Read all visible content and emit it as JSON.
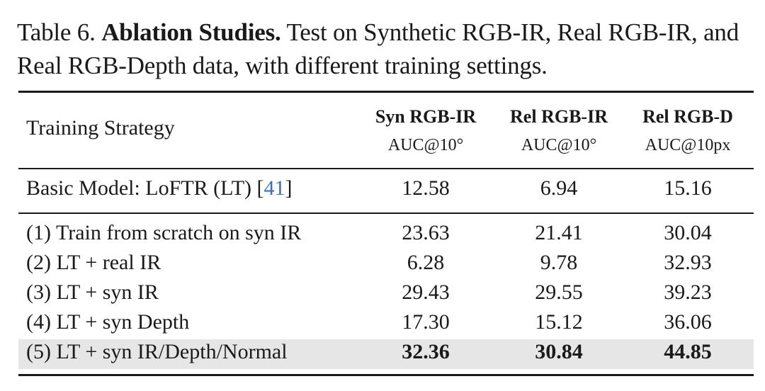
{
  "caption": {
    "label": "Table 6.",
    "title": "Ablation Studies.",
    "text": "Test on Synthetic RGB-IR, Real RGB-IR, and Real RGB-Depth data, with different training settings."
  },
  "table": {
    "header": {
      "strategy": "Training Strategy",
      "columns": [
        {
          "name": "Syn RGB-IR",
          "metric": "AUC@10°"
        },
        {
          "name": "Rel RGB-IR",
          "metric": "AUC@10°"
        },
        {
          "name": "Rel RGB-D",
          "metric": "AUC@10px"
        }
      ]
    },
    "baseline": {
      "label": "Basic Model: LoFTR (LT) [",
      "ref": "41",
      "label_end": "]",
      "values": [
        "12.58",
        "6.94",
        "15.16"
      ]
    },
    "rows": [
      {
        "label": "(1) Train from scratch on syn IR",
        "values": [
          "23.63",
          "21.41",
          "30.04"
        ]
      },
      {
        "label": "(2) LT + real IR",
        "values": [
          "6.28",
          "9.78",
          "32.93"
        ]
      },
      {
        "label": "(3) LT + syn IR",
        "values": [
          "29.43",
          "29.55",
          "39.23"
        ]
      },
      {
        "label": "(4) LT + syn Depth",
        "values": [
          "17.30",
          "15.12",
          "36.06"
        ]
      },
      {
        "label": "(5) LT + syn IR/Depth/Normal",
        "values": [
          "32.36",
          "30.84",
          "44.85"
        ],
        "highlighted": true
      }
    ]
  }
}
